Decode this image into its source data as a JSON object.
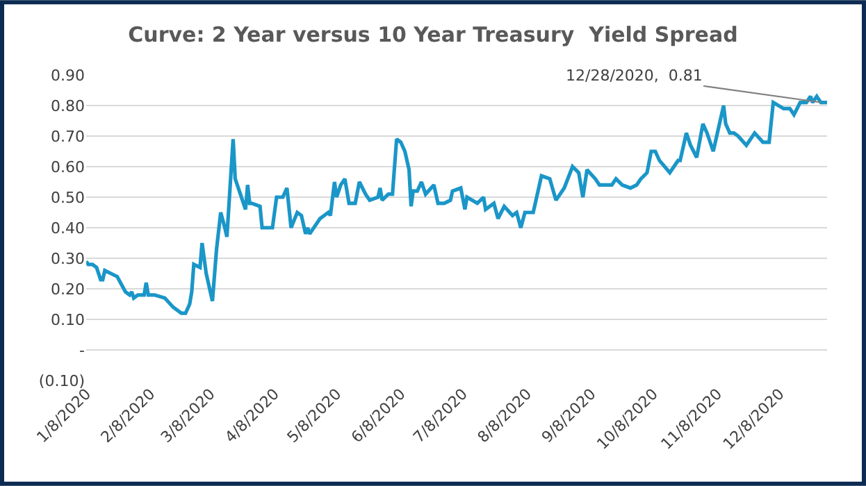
{
  "chart_data": {
    "type": "line",
    "title": "Curve: 2 Year versus 10 Year Treasury  Yield Spread",
    "x": [
      "2020-01-08",
      "2020-01-09",
      "2020-01-11",
      "2020-01-13",
      "2020-01-15",
      "2020-01-16",
      "2020-01-17",
      "2020-01-20",
      "2020-01-23",
      "2020-01-27",
      "2020-01-29",
      "2020-01-30",
      "2020-01-31",
      "2020-02-02",
      "2020-02-05",
      "2020-02-06",
      "2020-02-07",
      "2020-02-10",
      "2020-02-15",
      "2020-02-19",
      "2020-02-23",
      "2020-02-25",
      "2020-02-27",
      "2020-02-28",
      "2020-02-29",
      "2020-03-03",
      "2020-03-04",
      "2020-03-06",
      "2020-03-09",
      "2020-03-11",
      "2020-03-13",
      "2020-03-15",
      "2020-03-16",
      "2020-03-19",
      "2020-03-20",
      "2020-03-25",
      "2020-03-26",
      "2020-03-27",
      "2020-03-28",
      "2020-04-01",
      "2020-04-02",
      "2020-04-05",
      "2020-04-07",
      "2020-04-09",
      "2020-04-12",
      "2020-04-14",
      "2020-04-16",
      "2020-04-19",
      "2020-04-21",
      "2020-04-23",
      "2020-04-24",
      "2020-04-25",
      "2020-04-30",
      "2020-05-04",
      "2020-05-05",
      "2020-05-07",
      "2020-05-08",
      "2020-05-10",
      "2020-05-12",
      "2020-05-14",
      "2020-05-17",
      "2020-05-19",
      "2020-05-22",
      "2020-05-24",
      "2020-05-28",
      "2020-05-29",
      "2020-05-30",
      "2020-06-02",
      "2020-06-04",
      "2020-06-06",
      "2020-06-08",
      "2020-06-10",
      "2020-06-12",
      "2020-06-13",
      "2020-06-14",
      "2020-06-16",
      "2020-06-18",
      "2020-06-20",
      "2020-06-24",
      "2020-06-26",
      "2020-06-29",
      "2020-07-02",
      "2020-07-03",
      "2020-07-07",
      "2020-07-09",
      "2020-07-10",
      "2020-07-15",
      "2020-07-18",
      "2020-07-19",
      "2020-07-23",
      "2020-07-25",
      "2020-07-28",
      "2020-08-01",
      "2020-08-03",
      "2020-08-05",
      "2020-08-07",
      "2020-08-11",
      "2020-08-13",
      "2020-08-15",
      "2020-08-19",
      "2020-08-22",
      "2020-08-26",
      "2020-08-30",
      "2020-09-02",
      "2020-09-04",
      "2020-09-06",
      "2020-09-10",
      "2020-09-12",
      "2020-09-18",
      "2020-09-20",
      "2020-09-23",
      "2020-09-27",
      "2020-09-30",
      "2020-10-02",
      "2020-10-05",
      "2020-10-07",
      "2020-10-09",
      "2020-10-11",
      "2020-10-16",
      "2020-10-20",
      "2020-10-21",
      "2020-10-24",
      "2020-10-26",
      "2020-10-29",
      "2020-11-01",
      "2020-11-03",
      "2020-11-06",
      "2020-11-08",
      "2020-11-11",
      "2020-11-12",
      "2020-11-14",
      "2020-11-16",
      "2020-11-18",
      "2020-11-22",
      "2020-11-26",
      "2020-11-30",
      "2020-12-03",
      "2020-12-05",
      "2020-12-10",
      "2020-12-13",
      "2020-12-15",
      "2020-12-18",
      "2020-12-21",
      "2020-12-23",
      "2020-12-24",
      "2020-12-26",
      "2020-12-28",
      "2020-12-31"
    ],
    "series": [
      {
        "color": "#1a96c8",
        "values": [
          0.29,
          0.28,
          0.28,
          0.27,
          0.23,
          0.23,
          0.26,
          0.25,
          0.24,
          0.19,
          0.18,
          0.19,
          0.17,
          0.18,
          0.18,
          0.22,
          0.18,
          0.18,
          0.17,
          0.14,
          0.12,
          0.12,
          0.15,
          0.19,
          0.28,
          0.27,
          0.35,
          0.25,
          0.16,
          0.33,
          0.45,
          0.4,
          0.37,
          0.69,
          0.56,
          0.46,
          0.54,
          0.48,
          0.48,
          0.47,
          0.4,
          0.4,
          0.4,
          0.5,
          0.5,
          0.53,
          0.4,
          0.45,
          0.44,
          0.38,
          0.4,
          0.38,
          0.43,
          0.45,
          0.44,
          0.55,
          0.5,
          0.54,
          0.56,
          0.48,
          0.48,
          0.55,
          0.51,
          0.49,
          0.5,
          0.53,
          0.49,
          0.51,
          0.51,
          0.69,
          0.68,
          0.65,
          0.59,
          0.47,
          0.52,
          0.52,
          0.55,
          0.51,
          0.54,
          0.48,
          0.48,
          0.49,
          0.52,
          0.53,
          0.46,
          0.5,
          0.48,
          0.5,
          0.46,
          0.48,
          0.43,
          0.47,
          0.44,
          0.45,
          0.4,
          0.45,
          0.45,
          0.51,
          0.57,
          0.56,
          0.49,
          0.53,
          0.6,
          0.58,
          0.5,
          0.59,
          0.56,
          0.54,
          0.54,
          0.56,
          0.54,
          0.53,
          0.54,
          0.56,
          0.58,
          0.65,
          0.65,
          0.62,
          0.58,
          0.62,
          0.62,
          0.71,
          0.67,
          0.63,
          0.74,
          0.71,
          0.65,
          0.71,
          0.8,
          0.74,
          0.71,
          0.71,
          0.7,
          0.67,
          0.71,
          0.68,
          0.68,
          0.81,
          0.79,
          0.79,
          0.77,
          0.81,
          0.81,
          0.83,
          0.81,
          0.83,
          0.81,
          0.81
        ]
      }
    ],
    "xlim": [
      "2020-01-08",
      "2020-12-31"
    ],
    "xticks": [
      {
        "value": "2020-01-08",
        "label": "1/8/2020"
      },
      {
        "value": "2020-02-08",
        "label": "2/8/2020"
      },
      {
        "value": "2020-03-08",
        "label": "3/8/2020"
      },
      {
        "value": "2020-04-08",
        "label": "4/8/2020"
      },
      {
        "value": "2020-05-08",
        "label": "5/8/2020"
      },
      {
        "value": "2020-06-08",
        "label": "6/8/2020"
      },
      {
        "value": "2020-07-08",
        "label": "7/8/2020"
      },
      {
        "value": "2020-08-08",
        "label": "8/8/2020"
      },
      {
        "value": "2020-09-08",
        "label": "9/8/2020"
      },
      {
        "value": "2020-10-08",
        "label": "10/8/2020"
      },
      {
        "value": "2020-11-08",
        "label": "11/8/2020"
      },
      {
        "value": "2020-12-08",
        "label": "12/8/2020"
      }
    ],
    "ylim": [
      -0.1,
      0.9
    ],
    "yticks": [
      {
        "value": -0.1,
        "label": "(0.10)"
      },
      {
        "value": 0,
        "label": "-"
      },
      {
        "value": 0.1,
        "label": "0.10"
      },
      {
        "value": 0.2,
        "label": "0.20"
      },
      {
        "value": 0.3,
        "label": "0.30"
      },
      {
        "value": 0.4,
        "label": "0.40"
      },
      {
        "value": 0.5,
        "label": "0.50"
      },
      {
        "value": 0.6,
        "label": "0.60"
      },
      {
        "value": 0.7,
        "label": "0.70"
      },
      {
        "value": 0.8,
        "label": "0.80"
      },
      {
        "value": 0.9,
        "label": "0.90"
      }
    ],
    "grid": "y",
    "marker": "none",
    "line_style": "solid",
    "annotations": [
      {
        "text": "12/28/2020,  0.81",
        "x": "2020-12-28",
        "y": 0.81
      }
    ]
  }
}
